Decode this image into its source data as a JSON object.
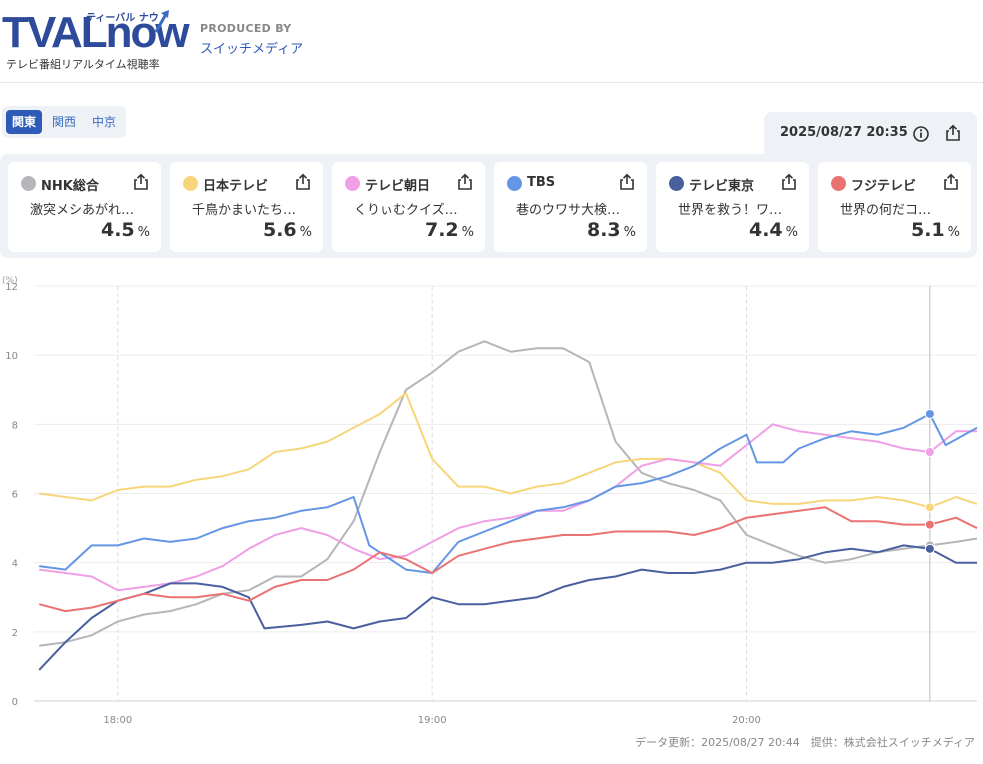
{
  "header": {
    "logo_text_main": "TVAL",
    "logo_text_now": "now",
    "logo_kana": "ティーバル ナウ",
    "tagline": "テレビ番組リアルタイム視聴率",
    "produced_by_label": "PRODUCED BY",
    "producer": "スイッチメディア"
  },
  "regions": [
    {
      "label": "関東",
      "active": true
    },
    {
      "label": "関西",
      "active": false
    },
    {
      "label": "中京",
      "active": false
    }
  ],
  "timestamp": "2025/08/27 20:35",
  "channels": [
    {
      "name": "NHK総合",
      "program": "激突メシあがれ…",
      "rating": "4.5",
      "unit": "%",
      "color": "#b4b6ba"
    },
    {
      "name": "日本テレビ",
      "program": "千鳥かまいたち…",
      "rating": "5.6",
      "unit": "%",
      "color": "#f7d57a"
    },
    {
      "name": "テレビ朝日",
      "program": "くりぃむクイズ…",
      "rating": "7.2",
      "unit": "%",
      "color": "#ef9fe6"
    },
    {
      "name": "TBS",
      "program": "巷のウワサ大検…",
      "rating": "8.3",
      "unit": "%",
      "color": "#6496e6"
    },
    {
      "name": "テレビ東京",
      "program": "世界を救う！ワ…",
      "rating": "4.4",
      "unit": "%",
      "color": "#4a5f9e"
    },
    {
      "name": "フジテレビ",
      "program": "世界の何だコ…",
      "rating": "5.1",
      "unit": "%",
      "color": "#ea7272"
    }
  ],
  "footer": {
    "updated": "データ更新：2025/08/27 20:44",
    "provider": "提供：株式会社スイッチメディア"
  },
  "chart_data": {
    "type": "line",
    "ylabel": "(%)",
    "ylim": [
      0,
      12
    ],
    "yticks": [
      0,
      2,
      4,
      6,
      8,
      10,
      12
    ],
    "xlim": [
      "17:44",
      "20:44"
    ],
    "xticks": [
      "18:00",
      "19:00",
      "20:00"
    ],
    "cursor_time": "20:35",
    "grid": true,
    "series": [
      {
        "name": "NHK総合",
        "color": "#b4b6ba",
        "points": [
          [
            "17:45",
            1.6
          ],
          [
            "17:50",
            1.7
          ],
          [
            "17:55",
            1.9
          ],
          [
            "18:00",
            2.3
          ],
          [
            "18:05",
            2.5
          ],
          [
            "18:10",
            2.6
          ],
          [
            "18:15",
            2.8
          ],
          [
            "18:20",
            3.1
          ],
          [
            "18:25",
            3.2
          ],
          [
            "18:30",
            3.6
          ],
          [
            "18:35",
            3.6
          ],
          [
            "18:40",
            4.1
          ],
          [
            "18:45",
            5.2
          ],
          [
            "18:50",
            7.2
          ],
          [
            "18:55",
            9.0
          ],
          [
            "19:00",
            9.5
          ],
          [
            "19:05",
            10.1
          ],
          [
            "19:10",
            10.4
          ],
          [
            "19:15",
            10.1
          ],
          [
            "19:20",
            10.2
          ],
          [
            "19:25",
            10.2
          ],
          [
            "19:30",
            9.8
          ],
          [
            "19:35",
            7.5
          ],
          [
            "19:40",
            6.6
          ],
          [
            "19:45",
            6.3
          ],
          [
            "19:50",
            6.1
          ],
          [
            "19:55",
            5.8
          ],
          [
            "20:00",
            4.8
          ],
          [
            "20:05",
            4.5
          ],
          [
            "20:10",
            4.2
          ],
          [
            "20:15",
            4.0
          ],
          [
            "20:20",
            4.1
          ],
          [
            "20:25",
            4.3
          ],
          [
            "20:30",
            4.4
          ],
          [
            "20:35",
            4.5
          ],
          [
            "20:40",
            4.6
          ],
          [
            "20:44",
            4.7
          ]
        ]
      },
      {
        "name": "日本テレビ",
        "color": "#f7d57a",
        "points": [
          [
            "17:45",
            6.0
          ],
          [
            "17:50",
            5.9
          ],
          [
            "17:55",
            5.8
          ],
          [
            "18:00",
            6.1
          ],
          [
            "18:05",
            6.2
          ],
          [
            "18:10",
            6.2
          ],
          [
            "18:15",
            6.4
          ],
          [
            "18:20",
            6.5
          ],
          [
            "18:25",
            6.7
          ],
          [
            "18:30",
            7.2
          ],
          [
            "18:35",
            7.3
          ],
          [
            "18:40",
            7.5
          ],
          [
            "18:45",
            7.9
          ],
          [
            "18:50",
            8.3
          ],
          [
            "18:55",
            8.9
          ],
          [
            "19:00",
            7.0
          ],
          [
            "19:05",
            6.2
          ],
          [
            "19:10",
            6.2
          ],
          [
            "19:15",
            6.0
          ],
          [
            "19:20",
            6.2
          ],
          [
            "19:25",
            6.3
          ],
          [
            "19:30",
            6.6
          ],
          [
            "19:35",
            6.9
          ],
          [
            "19:40",
            7.0
          ],
          [
            "19:45",
            7.0
          ],
          [
            "19:50",
            6.9
          ],
          [
            "19:55",
            6.6
          ],
          [
            "20:00",
            5.8
          ],
          [
            "20:05",
            5.7
          ],
          [
            "20:10",
            5.7
          ],
          [
            "20:15",
            5.8
          ],
          [
            "20:20",
            5.8
          ],
          [
            "20:25",
            5.9
          ],
          [
            "20:30",
            5.8
          ],
          [
            "20:35",
            5.6
          ],
          [
            "20:40",
            5.9
          ],
          [
            "20:44",
            5.7
          ]
        ]
      },
      {
        "name": "テレビ朝日",
        "color": "#ef9fe6",
        "points": [
          [
            "17:45",
            3.8
          ],
          [
            "17:50",
            3.7
          ],
          [
            "17:55",
            3.6
          ],
          [
            "18:00",
            3.2
          ],
          [
            "18:05",
            3.3
          ],
          [
            "18:10",
            3.4
          ],
          [
            "18:15",
            3.6
          ],
          [
            "18:20",
            3.9
          ],
          [
            "18:25",
            4.4
          ],
          [
            "18:30",
            4.8
          ],
          [
            "18:35",
            5.0
          ],
          [
            "18:40",
            4.8
          ],
          [
            "18:45",
            4.4
          ],
          [
            "18:50",
            4.1
          ],
          [
            "18:55",
            4.2
          ],
          [
            "19:00",
            4.6
          ],
          [
            "19:05",
            5.0
          ],
          [
            "19:10",
            5.2
          ],
          [
            "19:15",
            5.3
          ],
          [
            "19:20",
            5.5
          ],
          [
            "19:25",
            5.5
          ],
          [
            "19:30",
            5.8
          ],
          [
            "19:35",
            6.2
          ],
          [
            "19:40",
            6.8
          ],
          [
            "19:45",
            7.0
          ],
          [
            "19:50",
            6.9
          ],
          [
            "19:55",
            6.8
          ],
          [
            "20:00",
            7.4
          ],
          [
            "20:05",
            8.0
          ],
          [
            "20:10",
            7.8
          ],
          [
            "20:15",
            7.7
          ],
          [
            "20:20",
            7.6
          ],
          [
            "20:25",
            7.5
          ],
          [
            "20:30",
            7.3
          ],
          [
            "20:35",
            7.2
          ],
          [
            "20:40",
            7.8
          ],
          [
            "20:44",
            7.8
          ]
        ]
      },
      {
        "name": "TBS",
        "color": "#6496e6",
        "points": [
          [
            "17:45",
            3.9
          ],
          [
            "17:50",
            3.8
          ],
          [
            "17:55",
            4.5
          ],
          [
            "18:00",
            4.5
          ],
          [
            "18:05",
            4.7
          ],
          [
            "18:10",
            4.6
          ],
          [
            "18:15",
            4.7
          ],
          [
            "18:20",
            5.0
          ],
          [
            "18:25",
            5.2
          ],
          [
            "18:30",
            5.3
          ],
          [
            "18:35",
            5.5
          ],
          [
            "18:40",
            5.6
          ],
          [
            "18:45",
            5.9
          ],
          [
            "18:48",
            4.5
          ],
          [
            "18:55",
            3.8
          ],
          [
            "19:00",
            3.7
          ],
          [
            "19:05",
            4.6
          ],
          [
            "19:10",
            4.9
          ],
          [
            "19:15",
            5.2
          ],
          [
            "19:20",
            5.5
          ],
          [
            "19:25",
            5.6
          ],
          [
            "19:30",
            5.8
          ],
          [
            "19:35",
            6.2
          ],
          [
            "19:40",
            6.3
          ],
          [
            "19:45",
            6.5
          ],
          [
            "19:50",
            6.8
          ],
          [
            "19:55",
            7.3
          ],
          [
            "20:00",
            7.7
          ],
          [
            "20:02",
            6.9
          ],
          [
            "20:07",
            6.9
          ],
          [
            "20:10",
            7.3
          ],
          [
            "20:15",
            7.6
          ],
          [
            "20:20",
            7.8
          ],
          [
            "20:25",
            7.7
          ],
          [
            "20:30",
            7.9
          ],
          [
            "20:35",
            8.3
          ],
          [
            "20:38",
            7.4
          ],
          [
            "20:44",
            7.9
          ]
        ]
      },
      {
        "name": "テレビ東京",
        "color": "#4a5f9e",
        "points": [
          [
            "17:45",
            0.9
          ],
          [
            "17:50",
            1.7
          ],
          [
            "17:55",
            2.4
          ],
          [
            "18:00",
            2.9
          ],
          [
            "18:05",
            3.1
          ],
          [
            "18:10",
            3.4
          ],
          [
            "18:15",
            3.4
          ],
          [
            "18:20",
            3.3
          ],
          [
            "18:25",
            3.0
          ],
          [
            "18:28",
            2.1
          ],
          [
            "18:35",
            2.2
          ],
          [
            "18:40",
            2.3
          ],
          [
            "18:45",
            2.1
          ],
          [
            "18:50",
            2.3
          ],
          [
            "18:55",
            2.4
          ],
          [
            "19:00",
            3.0
          ],
          [
            "19:05",
            2.8
          ],
          [
            "19:10",
            2.8
          ],
          [
            "19:15",
            2.9
          ],
          [
            "19:20",
            3.0
          ],
          [
            "19:25",
            3.3
          ],
          [
            "19:30",
            3.5
          ],
          [
            "19:35",
            3.6
          ],
          [
            "19:40",
            3.8
          ],
          [
            "19:45",
            3.7
          ],
          [
            "19:50",
            3.7
          ],
          [
            "19:55",
            3.8
          ],
          [
            "20:00",
            4.0
          ],
          [
            "20:05",
            4.0
          ],
          [
            "20:10",
            4.1
          ],
          [
            "20:15",
            4.3
          ],
          [
            "20:20",
            4.4
          ],
          [
            "20:25",
            4.3
          ],
          [
            "20:30",
            4.5
          ],
          [
            "20:35",
            4.4
          ],
          [
            "20:40",
            4.0
          ],
          [
            "20:44",
            4.0
          ]
        ]
      },
      {
        "name": "フジテレビ",
        "color": "#ea7272",
        "points": [
          [
            "17:45",
            2.8
          ],
          [
            "17:50",
            2.6
          ],
          [
            "17:55",
            2.7
          ],
          [
            "18:00",
            2.9
          ],
          [
            "18:05",
            3.1
          ],
          [
            "18:10",
            3.0
          ],
          [
            "18:15",
            3.0
          ],
          [
            "18:20",
            3.1
          ],
          [
            "18:25",
            2.9
          ],
          [
            "18:30",
            3.3
          ],
          [
            "18:35",
            3.5
          ],
          [
            "18:40",
            3.5
          ],
          [
            "18:45",
            3.8
          ],
          [
            "18:50",
            4.3
          ],
          [
            "18:55",
            4.1
          ],
          [
            "19:00",
            3.7
          ],
          [
            "19:05",
            4.2
          ],
          [
            "19:10",
            4.4
          ],
          [
            "19:15",
            4.6
          ],
          [
            "19:20",
            4.7
          ],
          [
            "19:25",
            4.8
          ],
          [
            "19:30",
            4.8
          ],
          [
            "19:35",
            4.9
          ],
          [
            "19:40",
            4.9
          ],
          [
            "19:45",
            4.9
          ],
          [
            "19:50",
            4.8
          ],
          [
            "19:55",
            5.0
          ],
          [
            "20:00",
            5.3
          ],
          [
            "20:05",
            5.4
          ],
          [
            "20:10",
            5.5
          ],
          [
            "20:15",
            5.6
          ],
          [
            "20:20",
            5.2
          ],
          [
            "20:25",
            5.2
          ],
          [
            "20:30",
            5.1
          ],
          [
            "20:35",
            5.1
          ],
          [
            "20:40",
            5.3
          ],
          [
            "20:44",
            5.0
          ]
        ]
      }
    ]
  }
}
